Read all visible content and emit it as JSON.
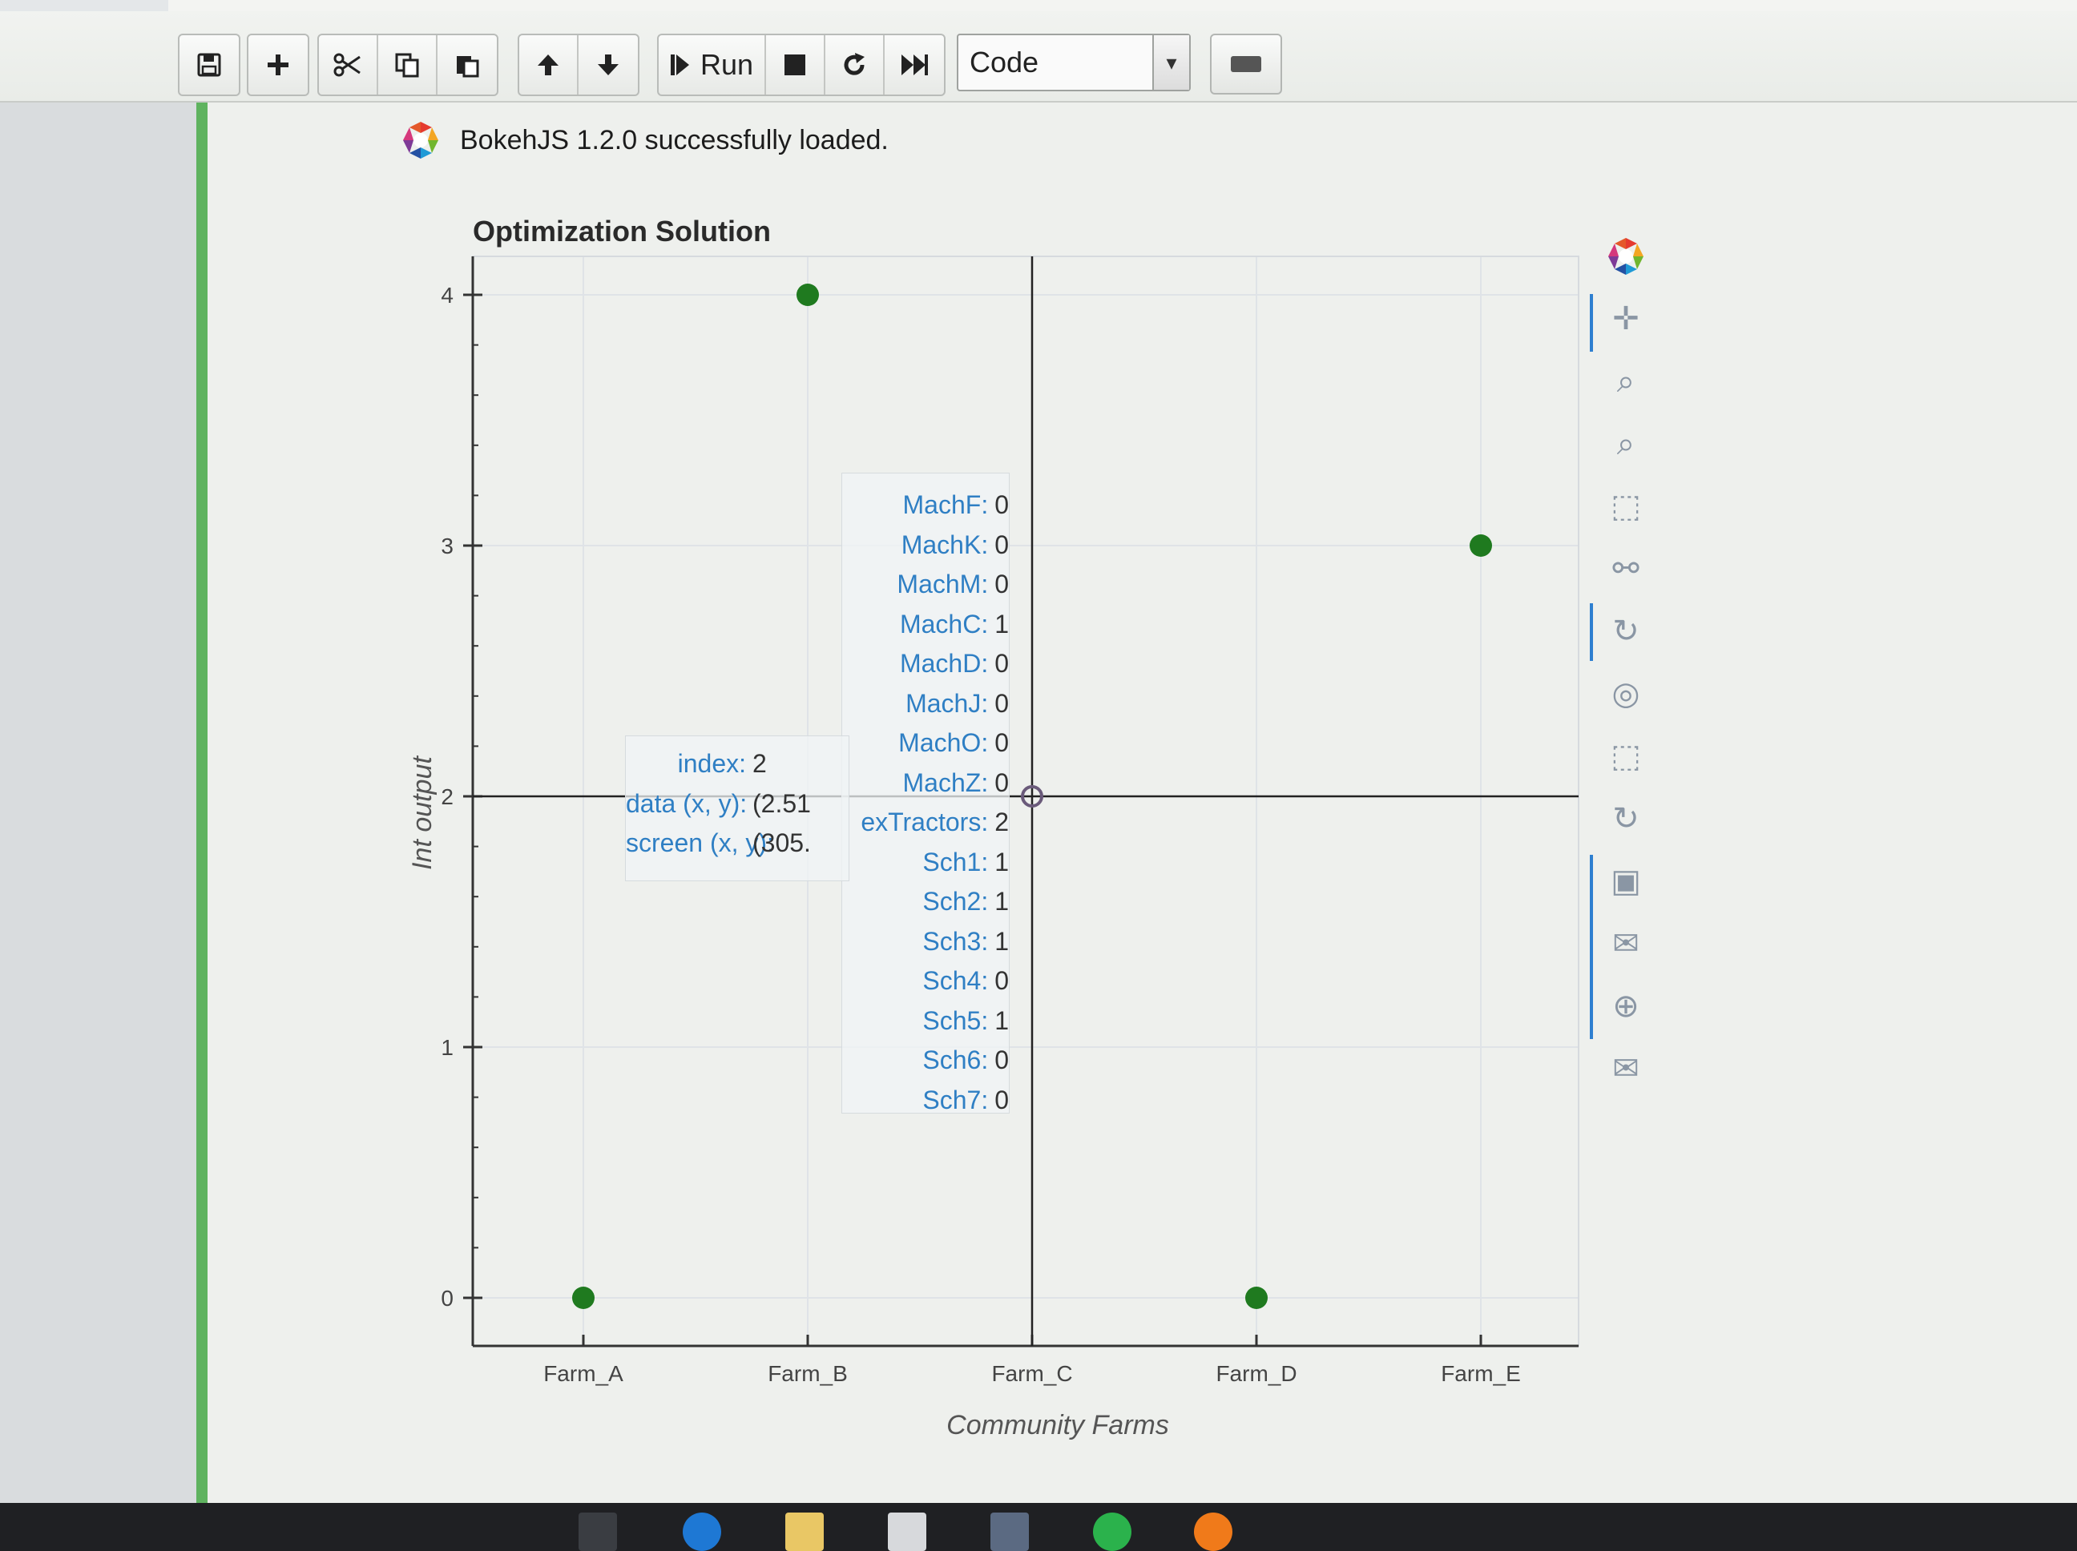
{
  "toolbar": {
    "run_label": "Run",
    "cell_type": "Code",
    "buttons": [
      "save-icon",
      "plus-icon",
      "scissors-icon",
      "copy-icon",
      "paste-icon",
      "arrow-up-icon",
      "arrow-down-icon",
      "step-run-icon",
      "stop-icon",
      "restart-icon",
      "fast-forward-icon"
    ]
  },
  "output": {
    "loaded_message": "BokehJS 1.2.0 successfully loaded."
  },
  "chart_data": {
    "type": "scatter",
    "title": "Optimization Solution",
    "xlabel": "Community Farms",
    "ylabel": "Int output",
    "categories": [
      "Farm_A",
      "Farm_B",
      "Farm_C",
      "Farm_D",
      "Farm_E"
    ],
    "y_ticks": [
      "0",
      "1",
      "2",
      "3",
      "4"
    ],
    "ylim": [
      -0.2,
      4.2
    ],
    "points": [
      {
        "x": "Farm_A",
        "y": 0
      },
      {
        "x": "Farm_B",
        "y": 4
      },
      {
        "x": "Farm_D",
        "y": 0
      },
      {
        "x": "Farm_E",
        "y": 3
      }
    ],
    "crosshair": {
      "x": "Farm_C",
      "y": 2
    },
    "point_color": "#1f7a1f",
    "grid": true
  },
  "tooltip_fields": {
    "rows": [
      {
        "k": "MachF:",
        "v": "0"
      },
      {
        "k": "MachK:",
        "v": "0"
      },
      {
        "k": "MachM:",
        "v": "0"
      },
      {
        "k": "MachC:",
        "v": "1"
      },
      {
        "k": "MachD:",
        "v": "0"
      },
      {
        "k": "MachJ:",
        "v": "0"
      },
      {
        "k": "MachO:",
        "v": "0"
      },
      {
        "k": "MachZ:",
        "v": "0"
      },
      {
        "k": "exTractors:",
        "v": "2"
      },
      {
        "k": "Sch1:",
        "v": "1"
      },
      {
        "k": "Sch2:",
        "v": "1"
      },
      {
        "k": "Sch3:",
        "v": "1"
      },
      {
        "k": "Sch4:",
        "v": "0"
      },
      {
        "k": "Sch5:",
        "v": "1"
      },
      {
        "k": "Sch6:",
        "v": "0"
      },
      {
        "k": "Sch7:",
        "v": "0"
      }
    ]
  },
  "tooltip_index": {
    "rows": [
      {
        "k": "index:",
        "v": "2"
      },
      {
        "k": "data (x, y):",
        "v": "(2.51"
      },
      {
        "k": "screen (x, y):",
        "v": "(305."
      }
    ]
  },
  "bokeh_tools": [
    "bokeh-logo-icon",
    "pan-icon",
    "lasso-select-icon",
    "zoom-icon",
    "box-select-icon",
    "wheel-zoom-icon",
    "tap-icon",
    "crosshair-tool-icon",
    "poly-select-icon",
    "reset-icon",
    "save-plot-icon",
    "hover-icon",
    "crosshair-icon",
    "hover-alt-icon"
  ],
  "taskbar": [
    "task-view-icon",
    "edge-icon",
    "file-explorer-icon",
    "store-icon",
    "app-icon",
    "jupyter-icon",
    "firefox-icon"
  ]
}
